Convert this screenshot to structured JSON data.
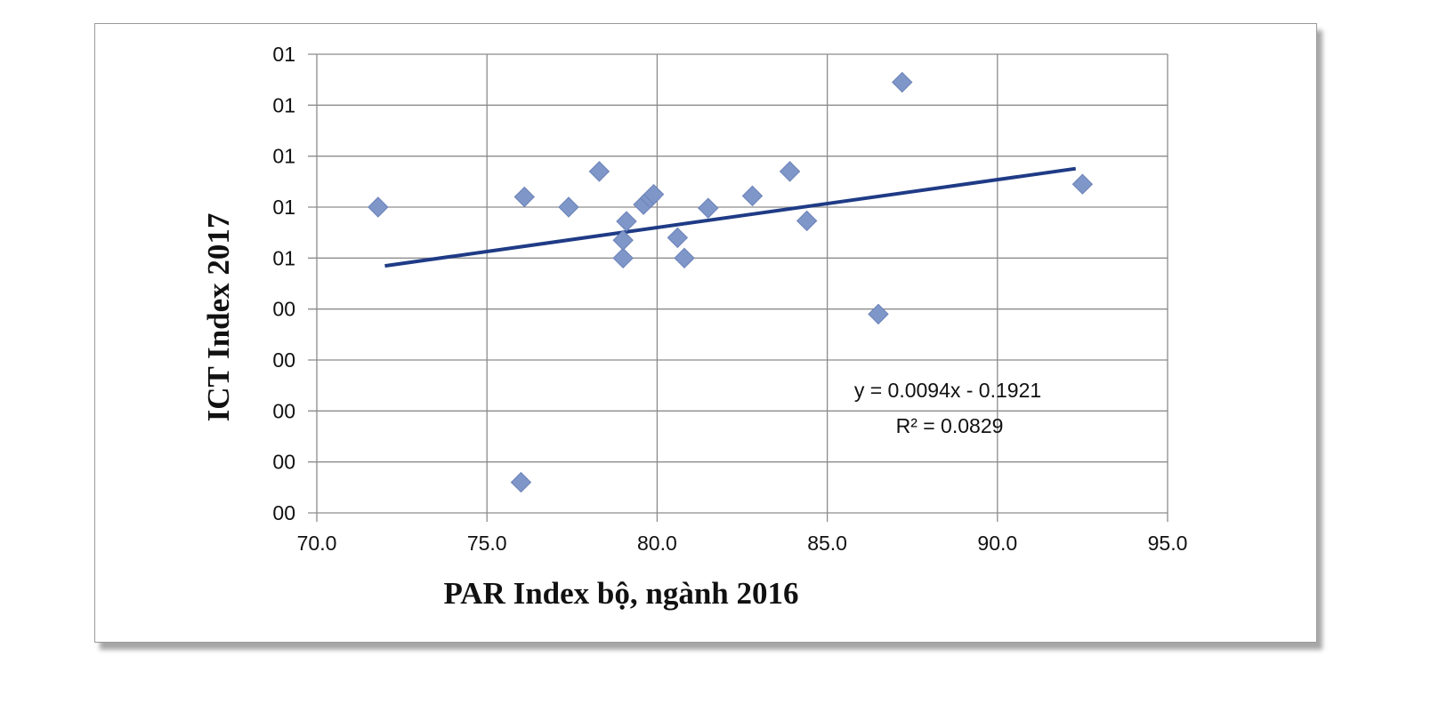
{
  "chart_data": {
    "type": "scatter",
    "xlabel": "PAR Index bộ, ngành 2016",
    "ylabel": "ICT Index 2017",
    "xlim": [
      70.0,
      95.0
    ],
    "ylim": [
      0,
      0.9
    ],
    "x_ticks": [
      70,
      75,
      80,
      85,
      90,
      95
    ],
    "x_tick_labels": [
      "70.0",
      "75.0",
      "80.0",
      "85.0",
      "90.0",
      "95.0"
    ],
    "y_ticks": [
      0,
      0.1,
      0.2,
      0.3,
      0.4,
      0.5,
      0.6,
      0.7,
      0.8,
      0.9
    ],
    "y_tick_labels": [
      "00",
      "00",
      "00",
      "00",
      "00",
      "01",
      "01",
      "01",
      "01",
      "01"
    ],
    "grid": true,
    "marker": "diamond",
    "points": [
      {
        "x": 71.8,
        "y": 0.6
      },
      {
        "x": 76.0,
        "y": 0.06
      },
      {
        "x": 76.1,
        "y": 0.62
      },
      {
        "x": 77.4,
        "y": 0.6
      },
      {
        "x": 78.3,
        "y": 0.67
      },
      {
        "x": 79.0,
        "y": 0.5
      },
      {
        "x": 79.0,
        "y": 0.535
      },
      {
        "x": 79.1,
        "y": 0.572
      },
      {
        "x": 79.6,
        "y": 0.605
      },
      {
        "x": 79.8,
        "y": 0.618
      },
      {
        "x": 79.9,
        "y": 0.625
      },
      {
        "x": 80.6,
        "y": 0.54
      },
      {
        "x": 80.8,
        "y": 0.5
      },
      {
        "x": 81.5,
        "y": 0.598
      },
      {
        "x": 82.8,
        "y": 0.622
      },
      {
        "x": 83.9,
        "y": 0.67
      },
      {
        "x": 84.4,
        "y": 0.573
      },
      {
        "x": 86.5,
        "y": 0.39
      },
      {
        "x": 87.2,
        "y": 0.845
      },
      {
        "x": 92.5,
        "y": 0.645
      }
    ],
    "trendline": {
      "type": "linear",
      "slope": 0.0094,
      "intercept": -0.1921,
      "x_range": [
        72.0,
        92.3
      ],
      "equation_label": "y = 0.0094x - 0.1921",
      "r2_label": "R² = 0.0829"
    },
    "colors": {
      "marker": "#7f96c9",
      "trendline": "#1f3b86",
      "grid": "#8c8c8c"
    }
  }
}
